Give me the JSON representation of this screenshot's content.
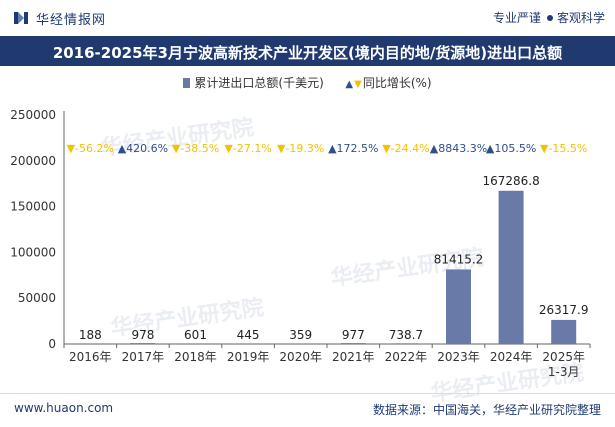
{
  "header": {
    "brand": "华经情报网",
    "tag_left": "专业严谨",
    "tag_right": "客观科学"
  },
  "title": "2016-2025年3月宁波高新技术产业开发区(境内目的地/货源地)进出口总额",
  "legend": {
    "bar_label": "累计进出口总额(千美元)",
    "line_label": "同比增长(%)"
  },
  "colors": {
    "bar": "#6a7aa8",
    "up": "#2f4e8c",
    "down": "#f2c200",
    "title_bg": "#203a70"
  },
  "watermark": "华经产业研究院",
  "chart_data": {
    "type": "bar",
    "title": "2016-2025年3月宁波高新技术产业开发区(境内目的地/货源地)进出口总额",
    "categories": [
      "2016年",
      "2017年",
      "2018年",
      "2019年",
      "2020年",
      "2021年",
      "2022年",
      "2023年",
      "2024年",
      "2025年\n1-3月"
    ],
    "series": [
      {
        "name": "累计进出口总额(千美元)",
        "values": [
          188,
          978,
          601,
          445,
          359,
          977,
          738.7,
          81415.2,
          167286.8,
          26317.9
        ],
        "labels": [
          "188",
          "978",
          "601",
          "445",
          "359",
          "977",
          "738.7",
          "81415.2",
          "167286.8",
          "26317.9"
        ]
      },
      {
        "name": "同比增长(%)",
        "values": [
          -56.2,
          420.6,
          -38.5,
          -27.1,
          -19.3,
          172.5,
          -24.4,
          8843.3,
          105.5,
          -15.5
        ],
        "labels": [
          "-56.2%",
          "420.6%",
          "-38.5%",
          "-27.1%",
          "-19.3%",
          "172.5%",
          "-24.4%",
          "8843.3%",
          "105.5%",
          "-15.5%"
        ]
      }
    ],
    "yticks": [
      "0",
      "50000",
      "100000",
      "150000",
      "200000",
      "250000"
    ],
    "ylim": [
      0,
      250000
    ],
    "xlabel": "",
    "ylabel": ""
  },
  "footer": {
    "url": "www.huaon.com",
    "source": "数据来源：中国海关，华经产业研究院整理"
  }
}
